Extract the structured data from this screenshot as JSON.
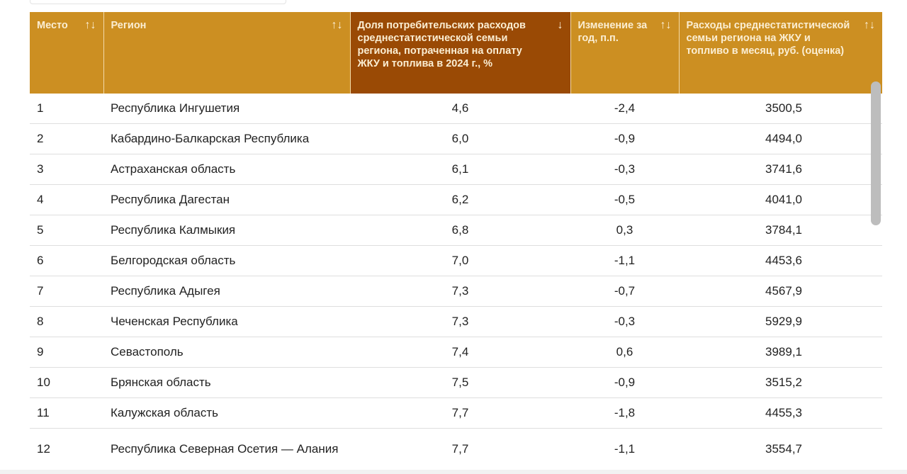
{
  "headers": [
    {
      "label": "Место",
      "sort": "↑↓"
    },
    {
      "label": "Регион",
      "sort": "↑↓"
    },
    {
      "label": "Доля потребительских расходов среднестатистической семьи региона, потраченная на оплату ЖКУ и топлива в 2024 г., %",
      "sort": "↓"
    },
    {
      "label": "Изменение за год, п.п.",
      "sort": "↑↓"
    },
    {
      "label": "Расходы среднестатистической семьи региона на ЖКУ и топливо в месяц, руб. (оценка)",
      "sort": "↑↓"
    }
  ],
  "rows": [
    {
      "place": "1",
      "region": "Республика Ингушетия",
      "share": "4,6",
      "change": "-2,4",
      "spend": "3500,5"
    },
    {
      "place": "2",
      "region": "Кабардино-Балкарская Республика",
      "share": "6,0",
      "change": "-0,9",
      "spend": "4494,0"
    },
    {
      "place": "3",
      "region": "Астраханская область",
      "share": "6,1",
      "change": "-0,3",
      "spend": "3741,6"
    },
    {
      "place": "4",
      "region": "Республика Дагестан",
      "share": "6,2",
      "change": "-0,5",
      "spend": "4041,0"
    },
    {
      "place": "5",
      "region": "Республика Калмыкия",
      "share": "6,8",
      "change": "0,3",
      "spend": "3784,1"
    },
    {
      "place": "6",
      "region": "Белгородская область",
      "share": "7,0",
      "change": "-1,1",
      "spend": "4453,6"
    },
    {
      "place": "7",
      "region": "Республика Адыгея",
      "share": "7,3",
      "change": "-0,7",
      "spend": "4567,9"
    },
    {
      "place": "8",
      "region": "Чеченская Республика",
      "share": "7,3",
      "change": "-0,3",
      "spend": "5929,9"
    },
    {
      "place": "9",
      "region": "Севастополь",
      "share": "7,4",
      "change": "0,6",
      "spend": "3989,1"
    },
    {
      "place": "10",
      "region": "Брянская область",
      "share": "7,5",
      "change": "-0,9",
      "spend": "3515,2"
    },
    {
      "place": "11",
      "region": "Калужская область",
      "share": "7,7",
      "change": "-1,8",
      "spend": "4455,3"
    },
    {
      "place": "12",
      "region": "Республика Северная Осетия — Алания",
      "share": "7,7",
      "change": "-1,1",
      "spend": "3554,7"
    }
  ]
}
